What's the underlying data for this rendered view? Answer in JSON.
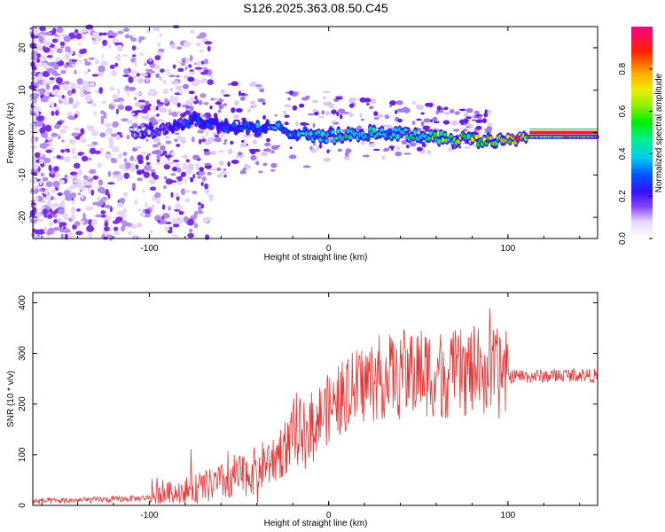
{
  "title": "S126.2025.363.08.50.C45",
  "chart_data": [
    {
      "type": "heatmap",
      "name": "spectrogram",
      "xlabel": "Height of straight line (km)",
      "ylabel": "Frequency (Hz)",
      "xlim": [
        -165,
        150
      ],
      "ylim": [
        -25,
        25
      ],
      "xticks": [
        -100,
        0,
        100
      ],
      "yticks": [
        -20,
        -10,
        0,
        10,
        20
      ],
      "colorbar": {
        "label": "Normalized spectral amplitude",
        "range": [
          0,
          1
        ],
        "ticks": [
          0.0,
          0.2,
          0.4,
          0.6,
          0.8
        ],
        "tick_labels": [
          "0.0",
          "0.2",
          "0.4",
          "0.6",
          "0.8"
        ]
      },
      "ridge": {
        "description": "narrow signal band near 0 Hz strengthening with height",
        "x": [
          -165,
          -100,
          -75,
          -50,
          -30,
          0,
          30,
          60,
          90,
          110,
          150
        ],
        "center_hz": [
          0,
          0,
          3,
          1,
          1,
          -1,
          0,
          -1,
          -2,
          -1,
          -1
        ],
        "amplitude": [
          0.0,
          0.2,
          0.3,
          0.3,
          0.35,
          0.45,
          0.5,
          0.55,
          0.7,
          0.8,
          0.95
        ]
      }
    },
    {
      "type": "line",
      "name": "snr",
      "xlabel": "Height of straight line (km)",
      "ylabel": "SNR (10 * v/v)",
      "xlim": [
        -165,
        150
      ],
      "ylim": [
        0,
        420
      ],
      "xticks": [
        -100,
        0,
        100
      ],
      "yticks": [
        0,
        100,
        200,
        300,
        400
      ],
      "color": "#ee3333",
      "series": [
        {
          "name": "SNR",
          "x": [
            -165,
            -140,
            -120,
            -100,
            -90,
            -80,
            -70,
            -60,
            -50,
            -40,
            -30,
            -20,
            -10,
            0,
            10,
            20,
            30,
            40,
            50,
            60,
            70,
            80,
            90,
            100,
            110,
            120,
            130,
            140,
            150
          ],
          "values": [
            8,
            10,
            12,
            15,
            25,
            30,
            35,
            45,
            55,
            70,
            95,
            130,
            160,
            190,
            220,
            240,
            255,
            260,
            265,
            262,
            258,
            265,
            262,
            255,
            255,
            255,
            257,
            258,
            255
          ]
        }
      ]
    }
  ]
}
